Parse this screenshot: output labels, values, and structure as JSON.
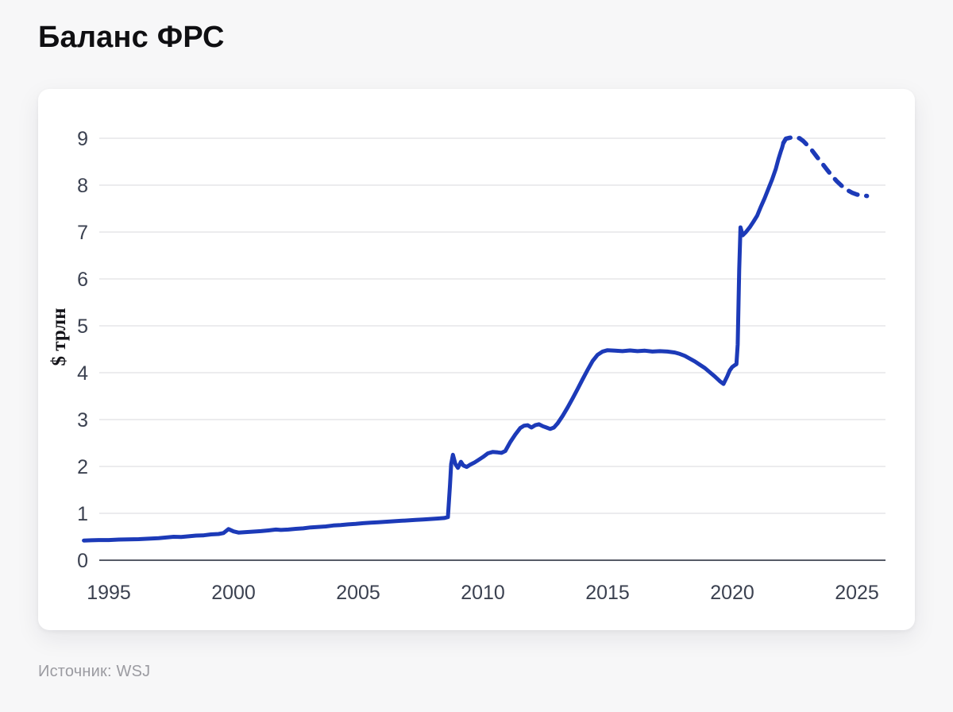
{
  "page": {
    "title": "Баланс ФРС",
    "source": "Источник: WSJ"
  },
  "chart_data": {
    "type": "line",
    "title": "Баланс ФРС",
    "xlabel": "",
    "ylabel": "$ трлн",
    "x_ticks": [
      1995,
      2000,
      2005,
      2010,
      2015,
      2020,
      2025
    ],
    "y_ticks": [
      0,
      1,
      2,
      3,
      4,
      5,
      6,
      7,
      8,
      9
    ],
    "xlim": [
      1994,
      2026
    ],
    "ylim": [
      0,
      9.35
    ],
    "grid": "horizontal",
    "legend": "none",
    "source": "Источник: WSJ",
    "colors": {
      "line": "#1c3ab8",
      "grid": "#d8d9dd",
      "axis": "#565b67",
      "tick_text": "#3b4150",
      "ylabel_text": "#15151a",
      "title_text": "#0f0f12",
      "source_text": "#9b9ba1",
      "card_bg": "#ffffff",
      "page_bg": "#f7f7f8"
    },
    "series": [
      {
        "name": "balance-actual",
        "style": "solid",
        "points": [
          [
            1994.0,
            0.42
          ],
          [
            1994.3,
            0.425
          ],
          [
            1994.6,
            0.43
          ],
          [
            1995.0,
            0.43
          ],
          [
            1995.4,
            0.44
          ],
          [
            1995.8,
            0.445
          ],
          [
            1996.2,
            0.45
          ],
          [
            1996.6,
            0.46
          ],
          [
            1997.0,
            0.47
          ],
          [
            1997.3,
            0.485
          ],
          [
            1997.6,
            0.5
          ],
          [
            1997.9,
            0.495
          ],
          [
            1998.2,
            0.51
          ],
          [
            1998.5,
            0.525
          ],
          [
            1998.8,
            0.53
          ],
          [
            1999.1,
            0.55
          ],
          [
            1999.4,
            0.56
          ],
          [
            1999.6,
            0.58
          ],
          [
            1999.8,
            0.665
          ],
          [
            2000.0,
            0.615
          ],
          [
            2000.2,
            0.59
          ],
          [
            2000.5,
            0.6
          ],
          [
            2000.8,
            0.61
          ],
          [
            2001.1,
            0.62
          ],
          [
            2001.4,
            0.635
          ],
          [
            2001.7,
            0.655
          ],
          [
            2001.9,
            0.645
          ],
          [
            2002.2,
            0.655
          ],
          [
            2002.5,
            0.67
          ],
          [
            2002.8,
            0.68
          ],
          [
            2003.1,
            0.7
          ],
          [
            2003.4,
            0.71
          ],
          [
            2003.7,
            0.72
          ],
          [
            2004.0,
            0.74
          ],
          [
            2004.3,
            0.75
          ],
          [
            2004.6,
            0.765
          ],
          [
            2004.9,
            0.775
          ],
          [
            2005.2,
            0.79
          ],
          [
            2005.5,
            0.8
          ],
          [
            2005.8,
            0.81
          ],
          [
            2006.1,
            0.82
          ],
          [
            2006.4,
            0.83
          ],
          [
            2006.7,
            0.84
          ],
          [
            2007.0,
            0.85
          ],
          [
            2007.3,
            0.86
          ],
          [
            2007.6,
            0.87
          ],
          [
            2007.9,
            0.88
          ],
          [
            2008.2,
            0.89
          ],
          [
            2008.45,
            0.9
          ],
          [
            2008.6,
            0.92
          ],
          [
            2008.68,
            1.6
          ],
          [
            2008.73,
            2.05
          ],
          [
            2008.8,
            2.25
          ],
          [
            2008.9,
            2.05
          ],
          [
            2009.0,
            1.97
          ],
          [
            2009.12,
            2.1
          ],
          [
            2009.22,
            2.02
          ],
          [
            2009.35,
            1.99
          ],
          [
            2009.5,
            2.04
          ],
          [
            2009.65,
            2.08
          ],
          [
            2009.8,
            2.13
          ],
          [
            2010.0,
            2.2
          ],
          [
            2010.2,
            2.28
          ],
          [
            2010.4,
            2.31
          ],
          [
            2010.6,
            2.3
          ],
          [
            2010.75,
            2.29
          ],
          [
            2010.9,
            2.33
          ],
          [
            2011.1,
            2.52
          ],
          [
            2011.3,
            2.68
          ],
          [
            2011.5,
            2.82
          ],
          [
            2011.65,
            2.87
          ],
          [
            2011.8,
            2.88
          ],
          [
            2011.95,
            2.83
          ],
          [
            2012.1,
            2.88
          ],
          [
            2012.25,
            2.9
          ],
          [
            2012.4,
            2.86
          ],
          [
            2012.55,
            2.83
          ],
          [
            2012.7,
            2.8
          ],
          [
            2012.85,
            2.83
          ],
          [
            2013.0,
            2.92
          ],
          [
            2013.2,
            3.08
          ],
          [
            2013.4,
            3.26
          ],
          [
            2013.6,
            3.45
          ],
          [
            2013.8,
            3.65
          ],
          [
            2014.0,
            3.86
          ],
          [
            2014.2,
            4.06
          ],
          [
            2014.4,
            4.25
          ],
          [
            2014.6,
            4.38
          ],
          [
            2014.8,
            4.45
          ],
          [
            2015.0,
            4.48
          ],
          [
            2015.3,
            4.47
          ],
          [
            2015.6,
            4.46
          ],
          [
            2015.9,
            4.475
          ],
          [
            2016.2,
            4.46
          ],
          [
            2016.5,
            4.47
          ],
          [
            2016.8,
            4.45
          ],
          [
            2017.1,
            4.46
          ],
          [
            2017.4,
            4.45
          ],
          [
            2017.7,
            4.43
          ],
          [
            2017.9,
            4.4
          ],
          [
            2018.1,
            4.36
          ],
          [
            2018.3,
            4.3
          ],
          [
            2018.5,
            4.24
          ],
          [
            2018.7,
            4.17
          ],
          [
            2018.9,
            4.1
          ],
          [
            2019.1,
            4.01
          ],
          [
            2019.3,
            3.92
          ],
          [
            2019.5,
            3.82
          ],
          [
            2019.65,
            3.76
          ],
          [
            2019.8,
            3.92
          ],
          [
            2019.9,
            4.05
          ],
          [
            2020.0,
            4.12
          ],
          [
            2020.1,
            4.16
          ],
          [
            2020.17,
            4.18
          ],
          [
            2020.22,
            4.6
          ],
          [
            2020.28,
            6.2
          ],
          [
            2020.33,
            7.1
          ],
          [
            2020.42,
            6.93
          ],
          [
            2020.55,
            7.0
          ],
          [
            2020.7,
            7.1
          ],
          [
            2020.85,
            7.22
          ],
          [
            2021.0,
            7.35
          ],
          [
            2021.15,
            7.54
          ],
          [
            2021.3,
            7.72
          ],
          [
            2021.45,
            7.92
          ],
          [
            2021.6,
            8.12
          ],
          [
            2021.75,
            8.35
          ],
          [
            2021.85,
            8.55
          ],
          [
            2021.95,
            8.72
          ],
          [
            2022.0,
            8.8
          ],
          [
            2022.05,
            8.9
          ]
        ]
      },
      {
        "name": "balance-projection",
        "style": "dashed",
        "points": [
          [
            2022.05,
            8.9
          ],
          [
            2022.15,
            8.99
          ],
          [
            2022.3,
            9.01
          ],
          [
            2022.5,
            9.02
          ],
          [
            2022.7,
            9.0
          ],
          [
            2022.85,
            8.94
          ],
          [
            2023.0,
            8.86
          ],
          [
            2023.2,
            8.74
          ],
          [
            2023.4,
            8.6
          ],
          [
            2023.6,
            8.47
          ],
          [
            2023.8,
            8.33
          ],
          [
            2024.0,
            8.2
          ],
          [
            2024.2,
            8.08
          ],
          [
            2024.4,
            7.98
          ],
          [
            2024.6,
            7.9
          ],
          [
            2024.8,
            7.84
          ],
          [
            2025.0,
            7.8
          ],
          [
            2025.2,
            7.78
          ],
          [
            2025.4,
            7.77
          ]
        ]
      }
    ]
  }
}
